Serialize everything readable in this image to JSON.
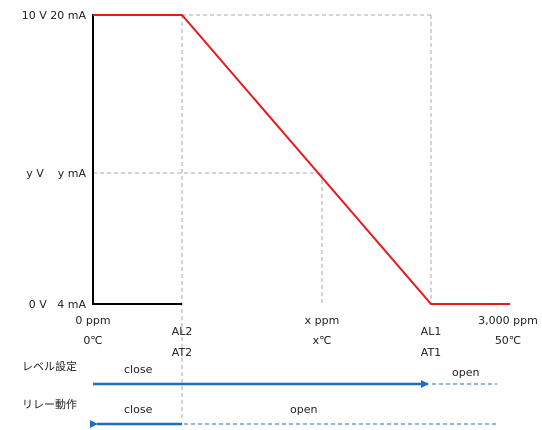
{
  "colors": {
    "output_line": "#e8191d",
    "relay_arrow": "#1f6fbd",
    "axis": "#000000",
    "guide": "#a8a8a8"
  },
  "y_labels": {
    "top": "10 V  20 mA",
    "mid": "y V    y mA",
    "bottom": "0 V   4 mA"
  },
  "x_labels": {
    "p0_top": "0 ppm",
    "p0_bottom": "0℃",
    "al2": "AL2",
    "at2": "AT2",
    "px_top": "x ppm",
    "px_bottom": "x℃",
    "al1": "AL1",
    "at1": "AT1",
    "pmax_top": "3,000 ppm",
    "pmax_bottom": "50℃"
  },
  "rows": {
    "level": {
      "label": "レベル設定",
      "close_text": "close",
      "open_text": "open"
    },
    "relay": {
      "label": "リレー動作",
      "close_text": "close",
      "open_text": "open"
    }
  }
}
